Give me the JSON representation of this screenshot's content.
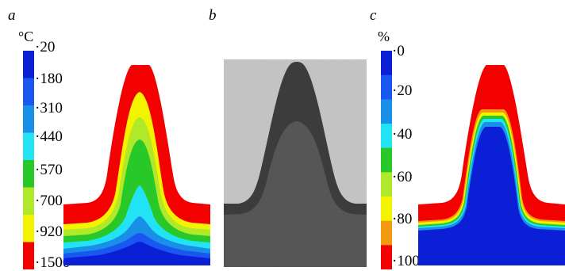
{
  "panels": {
    "a": {
      "letter": "a",
      "unit": "°C",
      "scale_labels": [
        "20",
        "180",
        "310",
        "440",
        "570",
        "700",
        "920",
        "1500"
      ],
      "scale_colors": [
        "#0a1fd6",
        "#1a57f0",
        "#1a8fe8",
        "#22e3f3",
        "#28c828",
        "#b0e82a",
        "#f3f300",
        "#f30000"
      ]
    },
    "b": {
      "letter": "b"
    },
    "c": {
      "letter": "c",
      "unit": "%",
      "scale_labels": [
        "0",
        "20",
        "40",
        "60",
        "80",
        "100"
      ],
      "scale_colors": [
        "#0a1fd6",
        "#1a57f0",
        "#1a8fe8",
        "#22e3f3",
        "#28c828",
        "#b0e82a",
        "#f3f300",
        "#f39a10",
        "#f30000"
      ]
    }
  },
  "colors": {
    "red": "#f30000",
    "yellow": "#f3f300",
    "yellow_green": "#b0e82a",
    "green": "#28c828",
    "cyan": "#22e3f3",
    "light_blue": "#1a8fe8",
    "mid_blue": "#1a57f0",
    "deep_blue": "#0a1fd6",
    "micrograph_light": "#c8c8c8",
    "micrograph_dark": "#4e4e4e"
  }
}
